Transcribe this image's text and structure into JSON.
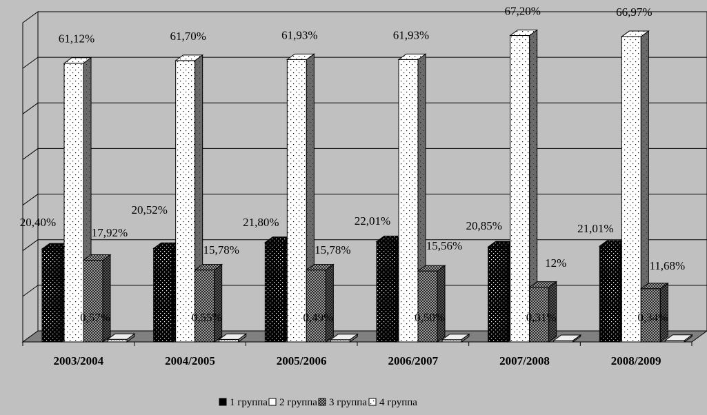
{
  "chart_data": {
    "type": "bar",
    "categories": [
      "2003/2004",
      "2004/2005",
      "2005/2006",
      "2006/2007",
      "2007/2008",
      "2008/2009"
    ],
    "series": [
      {
        "name": "1 группа",
        "values": [
          20.4,
          20.52,
          21.8,
          22.01,
          20.85,
          21.01
        ],
        "labels": [
          "20,40%",
          "20,52%",
          "21,80%",
          "22,01%",
          "20,85%",
          "21,01%"
        ],
        "pattern": "dark-dots"
      },
      {
        "name": "2 группа",
        "values": [
          61.12,
          61.7,
          61.93,
          61.93,
          67.2,
          66.97
        ],
        "labels": [
          "61,12%",
          "61,70%",
          "61,93%",
          "61,93%",
          "67,20%",
          "66,97%"
        ],
        "pattern": "white-dots"
      },
      {
        "name": "3 группа",
        "values": [
          17.92,
          15.78,
          15.78,
          15.56,
          12,
          11.68
        ],
        "labels": [
          "17,92%",
          "15,78%",
          "15,78%",
          "15,56%",
          "12%",
          "11,68%"
        ],
        "pattern": "checker"
      },
      {
        "name": "4 группа",
        "values": [
          0.57,
          0.55,
          0.49,
          0.5,
          0.31,
          0.34
        ],
        "labels": [
          "0,57%",
          "0,55%",
          "0,49%",
          "0,50%",
          "0,31%",
          "0,34%"
        ],
        "pattern": "light-dots"
      }
    ],
    "ylim": [
      0,
      70
    ],
    "grid": true,
    "legend_placement": "bottom",
    "title": "",
    "xlabel": "",
    "ylabel": ""
  },
  "colors": {
    "background": "#c0c0c0",
    "floor": "#808080",
    "bar_dark": "#000000",
    "bar_light": "#ffffff",
    "side_shade": "#555555"
  }
}
